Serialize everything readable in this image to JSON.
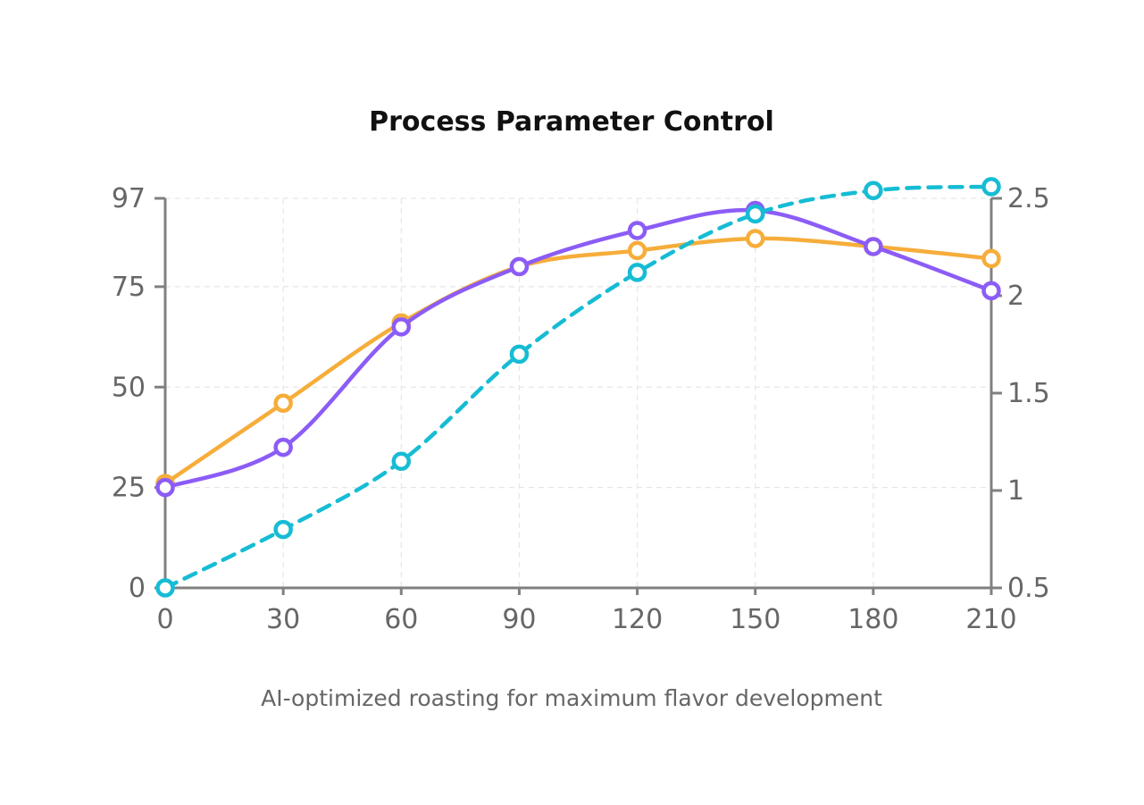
{
  "chart_data": {
    "type": "line",
    "title": "Process Parameter Control",
    "subtitle": "AI-optimized roasting for maximum flavor development",
    "x": [
      0,
      30,
      60,
      90,
      120,
      150,
      180,
      210
    ],
    "x_tick_labels": [
      "0",
      "30",
      "60",
      "90",
      "120",
      "150",
      "180",
      "210"
    ],
    "xlim": [
      0,
      210
    ],
    "y_left": {
      "ylim": [
        0,
        97
      ],
      "tick_values": [
        0,
        25,
        50,
        75,
        97
      ],
      "tick_labels": [
        "0",
        "25",
        "50",
        "75",
        "97"
      ]
    },
    "y_right": {
      "ylim": [
        0.5,
        2.5
      ],
      "tick_values": [
        0.5,
        1,
        1.5,
        2,
        2.5
      ],
      "tick_labels": [
        "0.5",
        "1",
        "1.5",
        "2",
        "2.5"
      ]
    },
    "grid": true,
    "legend": "none",
    "series": [
      {
        "axis": "left",
        "color": "#F6AD3A",
        "dashed": false,
        "values": [
          26,
          46,
          66,
          80,
          84,
          87,
          85,
          82
        ]
      },
      {
        "axis": "left",
        "color": "#8B5CF6",
        "dashed": false,
        "values": [
          25,
          35,
          65,
          80,
          89,
          94,
          85,
          74
        ]
      },
      {
        "axis": "right",
        "color": "#16BCD4",
        "dashed": true,
        "values": [
          0.5,
          0.8,
          1.15,
          1.7,
          2.12,
          2.42,
          2.54,
          2.56
        ]
      }
    ]
  }
}
